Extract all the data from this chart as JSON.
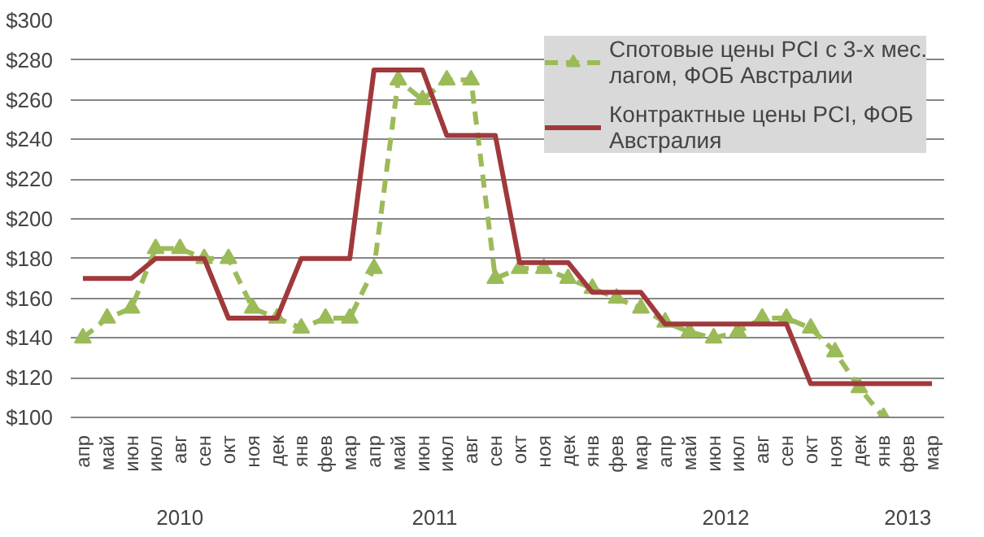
{
  "chart_data": {
    "type": "line",
    "categories": [
      "апр",
      "май",
      "июн",
      "июл",
      "авг",
      "сен",
      "окт",
      "ноя",
      "дек",
      "янв",
      "фев",
      "мар",
      "апр",
      "май",
      "июн",
      "июл",
      "авг",
      "сен",
      "окт",
      "ноя",
      "дек",
      "янв",
      "фев",
      "мар",
      "апр",
      "май",
      "июн",
      "июл",
      "авг",
      "сен",
      "окт",
      "ноя",
      "дек",
      "янв",
      "фев",
      "мар"
    ],
    "series": [
      {
        "name": "Спотовые цены PCI с 3-х мес. лагом, ФОБ Австралии",
        "color": "#9bbb59",
        "line_style": "dashed",
        "marker": "triangle",
        "values": [
          140,
          150,
          155,
          185,
          185,
          180,
          180,
          155,
          150,
          145,
          150,
          150,
          175,
          270,
          260,
          270,
          270,
          170,
          175,
          175,
          170,
          165,
          160,
          155,
          148,
          143,
          140,
          143,
          150,
          150,
          145,
          133,
          115,
          100,
          null,
          null
        ]
      },
      {
        "name": "Контрактные цены PCI, ФОБ Австралия",
        "color": "#a0393c",
        "line_style": "solid",
        "marker": "none",
        "values": [
          170,
          170,
          170,
          180,
          180,
          180,
          150,
          150,
          150,
          180,
          180,
          180,
          275,
          275,
          275,
          242,
          242,
          242,
          178,
          178,
          178,
          163,
          163,
          163,
          147,
          147,
          147,
          147,
          147,
          147,
          117,
          117,
          117,
          117,
          117,
          117
        ]
      }
    ],
    "ylim": [
      100,
      300
    ],
    "yticks": [
      {
        "value": 100,
        "label": "$100"
      },
      {
        "value": 120,
        "label": "$120"
      },
      {
        "value": 140,
        "label": "$140"
      },
      {
        "value": 160,
        "label": "$160"
      },
      {
        "value": 180,
        "label": "$180"
      },
      {
        "value": 200,
        "label": "$200"
      },
      {
        "value": 220,
        "label": "$220"
      },
      {
        "value": 240,
        "label": "$240"
      },
      {
        "value": 260,
        "label": "$260"
      },
      {
        "value": 280,
        "label": "$280"
      },
      {
        "value": 300,
        "label": "$300"
      }
    ],
    "grid": "y",
    "legend": "top right",
    "annotations": [
      "2010",
      "2011",
      "2012",
      "2013"
    ]
  }
}
